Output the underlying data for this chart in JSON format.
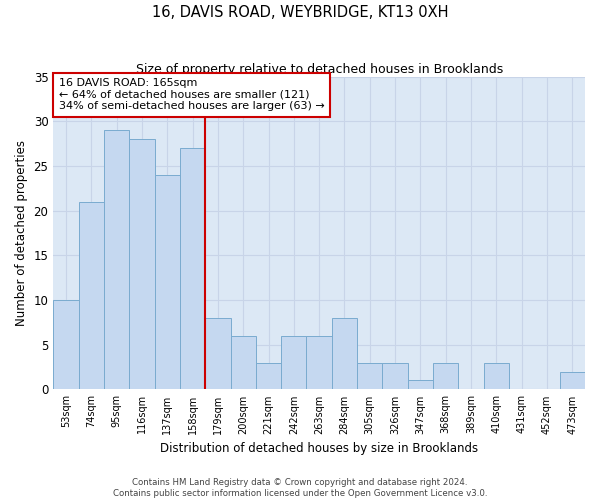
{
  "title": "16, DAVIS ROAD, WEYBRIDGE, KT13 0XH",
  "subtitle": "Size of property relative to detached houses in Brooklands",
  "xlabel": "Distribution of detached houses by size in Brooklands",
  "ylabel": "Number of detached properties",
  "categories": [
    "53sqm",
    "74sqm",
    "95sqm",
    "116sqm",
    "137sqm",
    "158sqm",
    "179sqm",
    "200sqm",
    "221sqm",
    "242sqm",
    "263sqm",
    "284sqm",
    "305sqm",
    "326sqm",
    "347sqm",
    "368sqm",
    "389sqm",
    "410sqm",
    "431sqm",
    "452sqm",
    "473sqm"
  ],
  "values": [
    10,
    21,
    29,
    28,
    24,
    27,
    8,
    6,
    3,
    6,
    6,
    8,
    3,
    3,
    1,
    3,
    0,
    3,
    0,
    0,
    2
  ],
  "bar_color": "#c5d8f0",
  "bar_edge_color": "#7aabcf",
  "annotation_text": "16 DAVIS ROAD: 165sqm\n← 64% of detached houses are smaller (121)\n34% of semi-detached houses are larger (63) →",
  "annotation_box_color": "#ffffff",
  "annotation_box_edge_color": "#cc0000",
  "vline_color": "#cc0000",
  "vline_x": 6.0,
  "ylim": [
    0,
    35
  ],
  "yticks": [
    0,
    5,
    10,
    15,
    20,
    25,
    30,
    35
  ],
  "grid_color": "#c8d4e8",
  "bg_color": "#dce8f5",
  "footnote": "Contains HM Land Registry data © Crown copyright and database right 2024.\nContains public sector information licensed under the Open Government Licence v3.0."
}
